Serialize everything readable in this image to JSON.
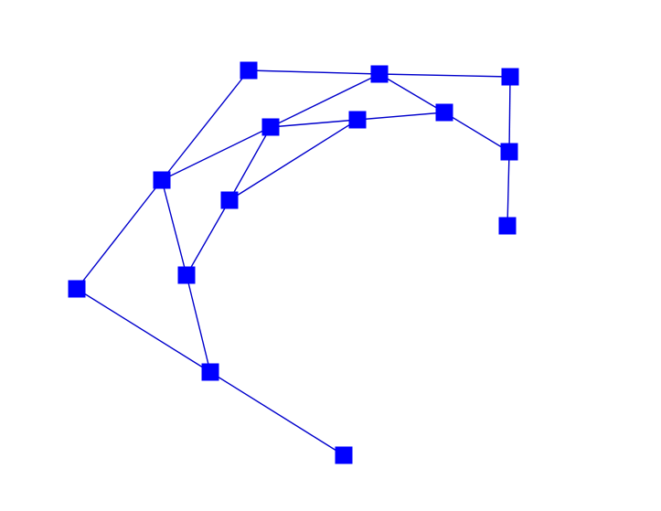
{
  "graph": {
    "node_color": "#0000ff",
    "edge_color": "#0000cc",
    "nodes": [
      "n1",
      "n2",
      "n3",
      "n4",
      "n5",
      "n6",
      "n7",
      "n8",
      "n9",
      "n10",
      "n11",
      "n12",
      "n13",
      "n14",
      "n15"
    ],
    "edges": [
      [
        "n1",
        "n2"
      ],
      [
        "n2",
        "n4"
      ],
      [
        "n1",
        "n4"
      ],
      [
        "n1",
        "n5"
      ],
      [
        "n1",
        "n6"
      ],
      [
        "n6",
        "n9"
      ],
      [
        "n9",
        "n10"
      ],
      [
        "n6",
        "n8"
      ],
      [
        "n8",
        "n10"
      ],
      [
        "n6",
        "n7"
      ],
      [
        "n7",
        "n3"
      ],
      [
        "n3",
        "n5"
      ],
      [
        "n5",
        "n11"
      ],
      [
        "n11",
        "n12"
      ],
      [
        "n4",
        "n13"
      ],
      [
        "n13",
        "n12"
      ],
      [
        "n11",
        "n14"
      ],
      [
        "n14",
        "n15"
      ],
      [
        "n8",
        "n13"
      ]
    ]
  }
}
